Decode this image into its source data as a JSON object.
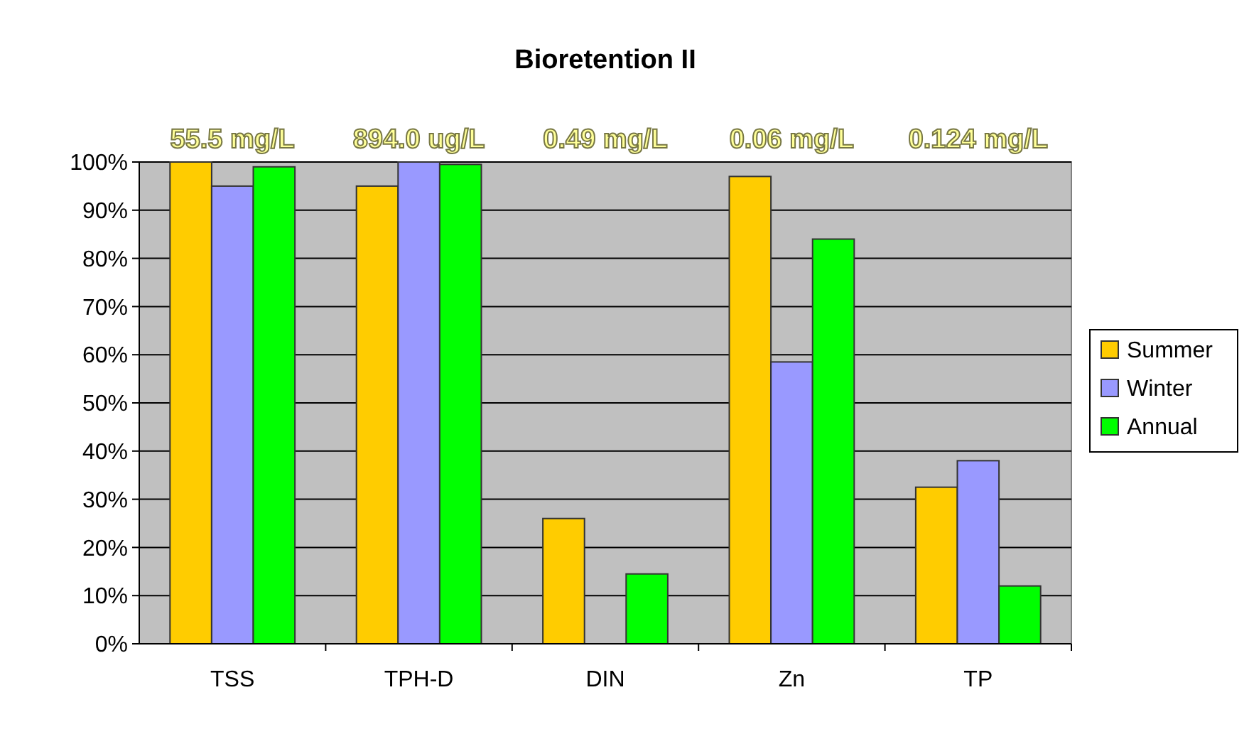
{
  "chart_data": {
    "type": "bar",
    "title": "Bioretention II",
    "categories": [
      "TSS",
      "TPH-D",
      "DIN",
      "Zn",
      "TP"
    ],
    "series": [
      {
        "name": "Summer",
        "color": "#ffcc00",
        "values": [
          100,
          95,
          26,
          97,
          32.5
        ]
      },
      {
        "name": "Winter",
        "color": "#9999ff",
        "values": [
          95,
          100,
          null,
          58.5,
          38
        ]
      },
      {
        "name": "Annual",
        "color": "#00ff00",
        "values": [
          99,
          99.5,
          14.5,
          84,
          12
        ]
      }
    ],
    "ylim": [
      0,
      100
    ],
    "yticks": [
      {
        "value": 0,
        "label": "0%"
      },
      {
        "value": 10,
        "label": "10%"
      },
      {
        "value": 20,
        "label": "20%"
      },
      {
        "value": 30,
        "label": "30%"
      },
      {
        "value": 40,
        "label": "40%"
      },
      {
        "value": 50,
        "label": "50%"
      },
      {
        "value": 60,
        "label": "60%"
      },
      {
        "value": 70,
        "label": "70%"
      },
      {
        "value": 80,
        "label": "80%"
      },
      {
        "value": 90,
        "label": "90%"
      },
      {
        "value": 100,
        "label": "100%"
      }
    ],
    "grid": "y",
    "legend": "right",
    "annotations": [
      "55.5 mg/L",
      "894.0 ug/L",
      "0.49 mg/L",
      "0.06 mg/L",
      "0.124 mg/L"
    ]
  }
}
